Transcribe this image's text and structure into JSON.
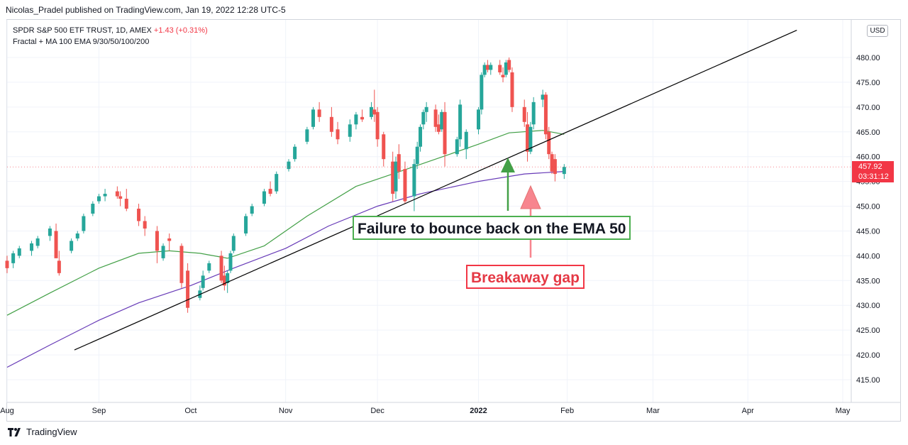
{
  "header": {
    "published_line": "Nicolas_Pradel published on TradingView.com, Jan 19, 2022 12:28 UTC-5"
  },
  "legend": {
    "symbol_line": "SPDR S&P 500 ETF TRUST, 1D, AMEX",
    "change": "+1.43 (+0.31%)",
    "indicator_line": "Fractal + MA 100 EMA 9/30/50/100/200"
  },
  "currency_badge": "USD",
  "price_tag": {
    "price": "457.92",
    "countdown": "03:31:12"
  },
  "annotations": {
    "ema_failure": "Failure to bounce back on the EMA 50",
    "breakaway_gap": "Breakaway gap"
  },
  "footer": {
    "brand": "TradingView"
  },
  "colors": {
    "up": "#26a69a",
    "down": "#ef5350",
    "ema50": "#43a047",
    "ema100": "#673ab7",
    "trendline": "#000000",
    "green_arrow": "#43a047",
    "red_arrow": "#f7858e"
  },
  "chart_data": {
    "type": "candlestick",
    "y_axis": {
      "ticks": [
        "480.00",
        "475.00",
        "470.00",
        "465.00",
        "460.00",
        "455.00",
        "450.00",
        "445.00",
        "440.00",
        "435.00",
        "430.00",
        "425.00",
        "420.00",
        "415.00"
      ],
      "range": [
        411,
        486
      ]
    },
    "x_axis": {
      "ticks": [
        {
          "label": "Aug",
          "date": "2021-08-02",
          "bold": false
        },
        {
          "label": "Sep",
          "date": "2021-09-01",
          "bold": false
        },
        {
          "label": "Oct",
          "date": "2021-10-01",
          "bold": false
        },
        {
          "label": "Nov",
          "date": "2021-11-01",
          "bold": false
        },
        {
          "label": "Dec",
          "date": "2021-12-01",
          "bold": false
        },
        {
          "label": "2022",
          "date": "2022-01-03",
          "bold": true
        },
        {
          "label": "Feb",
          "date": "2022-02-01",
          "bold": false
        },
        {
          "label": "Mar",
          "date": "2022-03-01",
          "bold": false
        },
        {
          "label": "Apr",
          "date": "2022-04-01",
          "bold": false
        },
        {
          "label": "May",
          "date": "2022-05-02",
          "bold": false
        }
      ]
    },
    "candles": [
      [
        "2021-08-02",
        439.0,
        440.0,
        436.5,
        437.5
      ],
      [
        "2021-08-04",
        438.5,
        441.0,
        437.5,
        440.5
      ],
      [
        "2021-08-06",
        440.0,
        442.0,
        439.5,
        441.5
      ],
      [
        "2021-08-10",
        441.0,
        443.0,
        440.0,
        442.5
      ],
      [
        "2021-08-12",
        442.0,
        444.0,
        441.5,
        443.5
      ],
      [
        "2021-08-16",
        444.0,
        446.0,
        443.0,
        445.5
      ],
      [
        "2021-08-18",
        445.0,
        446.5,
        440.0,
        439.5
      ],
      [
        "2021-08-19",
        439.0,
        441.0,
        436.0,
        436.5
      ],
      [
        "2021-08-23",
        441.0,
        443.5,
        440.5,
        443.0
      ],
      [
        "2021-08-25",
        443.5,
        445.0,
        443.0,
        444.5
      ],
      [
        "2021-08-27",
        445.0,
        448.5,
        444.5,
        448.0
      ],
      [
        "2021-08-30",
        448.5,
        451.0,
        448.0,
        450.5
      ],
      [
        "2021-09-01",
        451.0,
        452.5,
        450.5,
        452.0
      ],
      [
        "2021-09-03",
        452.0,
        453.5,
        451.0,
        452.5
      ],
      [
        "2021-09-07",
        453.0,
        454.0,
        451.5,
        452.0
      ],
      [
        "2021-09-08",
        452.0,
        453.0,
        450.0,
        451.5
      ],
      [
        "2021-09-10",
        451.5,
        453.5,
        449.0,
        449.5
      ],
      [
        "2021-09-14",
        449.5,
        450.5,
        446.0,
        447.0
      ],
      [
        "2021-09-16",
        447.0,
        448.0,
        444.0,
        445.5
      ],
      [
        "2021-09-20",
        445.0,
        446.0,
        438.5,
        441.0
      ],
      [
        "2021-09-22",
        439.5,
        442.5,
        439.0,
        442.0
      ],
      [
        "2021-09-24",
        443.5,
        444.5,
        441.0,
        443.0
      ],
      [
        "2021-09-28",
        442.0,
        442.5,
        433.5,
        434.5
      ],
      [
        "2021-09-30",
        437.0,
        438.5,
        428.5,
        429.5
      ],
      [
        "2021-10-04",
        431.5,
        434.0,
        431.0,
        433.0
      ],
      [
        "2021-10-05",
        433.5,
        437.0,
        433.0,
        436.0
      ],
      [
        "2021-10-07",
        437.0,
        439.0,
        436.5,
        438.5
      ],
      [
        "2021-10-11",
        440.0,
        441.0,
        434.5,
        435.0
      ],
      [
        "2021-10-12",
        436.0,
        438.0,
        433.0,
        434.0
      ],
      [
        "2021-10-13",
        434.5,
        437.0,
        432.5,
        436.5
      ],
      [
        "2021-10-14",
        437.0,
        441.0,
        436.5,
        440.5
      ],
      [
        "2021-10-15",
        441.0,
        444.5,
        440.5,
        444.0
      ],
      [
        "2021-10-19",
        444.5,
        448.5,
        444.0,
        448.0
      ],
      [
        "2021-10-21",
        448.5,
        450.5,
        448.0,
        450.0
      ],
      [
        "2021-10-25",
        450.5,
        453.5,
        450.0,
        453.0
      ],
      [
        "2021-10-27",
        453.5,
        455.0,
        452.0,
        452.5
      ],
      [
        "2021-10-29",
        453.0,
        457.0,
        452.5,
        456.5
      ],
      [
        "2021-11-02",
        457.5,
        459.5,
        457.0,
        459.0
      ],
      [
        "2021-11-04",
        459.5,
        462.5,
        459.0,
        462.0
      ],
      [
        "2021-11-08",
        463.0,
        466.0,
        462.5,
        465.5
      ],
      [
        "2021-11-10",
        466.0,
        470.0,
        465.5,
        469.5
      ],
      [
        "2021-11-12",
        469.5,
        471.0,
        467.0,
        468.0
      ],
      [
        "2021-11-16",
        468.0,
        470.0,
        464.0,
        465.0
      ],
      [
        "2021-11-18",
        465.5,
        467.0,
        462.5,
        463.5
      ],
      [
        "2021-11-22",
        464.0,
        467.5,
        463.0,
        466.5
      ],
      [
        "2021-11-24",
        466.5,
        469.0,
        465.5,
        468.5
      ],
      [
        "2021-11-26",
        468.0,
        469.5,
        467.0,
        467.5
      ],
      [
        "2021-11-29",
        468.0,
        471.0,
        467.5,
        470.0
      ],
      [
        "2021-11-30",
        469.5,
        473.5,
        467.0,
        468.5
      ],
      [
        "2021-12-01",
        469.0,
        470.0,
        462.0,
        463.5
      ],
      [
        "2021-12-03",
        464.5,
        465.0,
        458.0,
        459.5
      ],
      [
        "2021-12-06",
        459.0,
        461.0,
        451.0,
        452.5
      ],
      [
        "2021-12-07",
        453.0,
        460.0,
        451.5,
        459.0
      ],
      [
        "2021-12-08",
        460.5,
        462.5,
        455.5,
        457.0
      ],
      [
        "2021-12-10",
        457.5,
        459.0,
        450.5,
        451.0
      ],
      [
        "2021-12-13",
        452.0,
        459.5,
        449.0,
        458.5
      ],
      [
        "2021-12-14",
        458.5,
        463.0,
        457.5,
        462.0
      ],
      [
        "2021-12-15",
        462.0,
        466.5,
        461.0,
        466.0
      ],
      [
        "2021-12-16",
        466.5,
        469.5,
        465.5,
        469.0
      ],
      [
        "2021-12-17",
        469.0,
        471.0,
        467.0,
        470.0
      ],
      [
        "2021-12-20",
        469.5,
        470.5,
        465.0,
        466.0
      ],
      [
        "2021-12-21",
        466.5,
        468.5,
        464.5,
        465.0
      ],
      [
        "2021-12-22",
        465.5,
        469.5,
        465.0,
        469.0
      ],
      [
        "2021-12-23",
        469.0,
        471.0,
        458.0,
        460.5
      ],
      [
        "2021-12-27",
        460.5,
        464.0,
        460.0,
        463.5
      ],
      [
        "2021-12-28",
        463.5,
        471.5,
        462.0,
        470.5
      ],
      [
        "2021-12-30",
        461.5,
        465.5,
        459.5,
        465.0
      ],
      [
        "2022-01-03",
        465.5,
        470.0,
        464.5,
        469.5
      ],
      [
        "2022-01-04",
        469.5,
        477.0,
        468.5,
        476.5
      ],
      [
        "2022-01-05",
        476.5,
        479.0,
        476.0,
        478.5
      ],
      [
        "2022-01-06",
        478.5,
        479.5,
        477.0,
        477.5
      ],
      [
        "2022-01-07",
        477.5,
        479.0,
        476.5,
        478.5
      ],
      [
        "2022-01-10",
        478.5,
        479.5,
        476.5,
        477.0
      ],
      [
        "2022-01-11",
        476.5,
        478.0,
        475.0,
        476.0
      ],
      [
        "2022-01-12",
        476.5,
        479.5,
        476.0,
        479.0
      ],
      [
        "2022-01-13",
        479.5,
        480.0,
        477.0,
        477.5
      ],
      [
        "2022-01-14",
        477.0,
        478.0,
        469.0,
        470.0
      ],
      [
        "2022-01-18",
        470.0,
        471.5,
        466.0,
        467.0
      ],
      [
        "2022-01-19",
        466.5,
        469.0,
        459.0,
        461.0
      ],
      [
        "2022-01-20",
        461.0,
        467.0,
        460.5,
        466.0
      ],
      [
        "2022-01-21",
        466.5,
        472.0,
        465.5,
        471.0
      ],
      [
        "2022-01-24",
        471.5,
        473.5,
        470.0,
        472.5
      ],
      [
        "2022-01-25",
        472.5,
        473.0,
        463.5,
        464.5
      ],
      [
        "2022-01-26",
        465.0,
        466.0,
        459.5,
        460.5
      ],
      [
        "2022-01-27",
        460.5,
        461.0,
        456.5,
        457.0
      ],
      [
        "2022-01-28",
        459.5,
        460.5,
        455.0,
        456.5
      ],
      [
        "2022-01-31",
        456.5,
        458.5,
        455.5,
        457.92
      ]
    ],
    "ema50": [
      [
        "2021-08-02",
        428.0
      ],
      [
        "2021-08-16",
        432.5
      ],
      [
        "2021-09-01",
        437.5
      ],
      [
        "2021-09-14",
        440.5
      ],
      [
        "2021-09-24",
        441.0
      ],
      [
        "2021-10-04",
        440.5
      ],
      [
        "2021-10-13",
        439.5
      ],
      [
        "2021-10-25",
        442.0
      ],
      [
        "2021-11-08",
        448.0
      ],
      [
        "2021-11-24",
        454.0
      ],
      [
        "2021-12-06",
        456.5
      ],
      [
        "2021-12-20",
        459.5
      ],
      [
        "2022-01-03",
        462.5
      ],
      [
        "2022-01-13",
        464.8
      ],
      [
        "2022-01-24",
        465.3
      ],
      [
        "2022-01-31",
        464.5
      ]
    ],
    "ema100": [
      [
        "2021-08-02",
        417.5
      ],
      [
        "2021-08-16",
        422.0
      ],
      [
        "2021-09-01",
        427.0
      ],
      [
        "2021-09-14",
        430.5
      ],
      [
        "2021-10-01",
        434.0
      ],
      [
        "2021-10-15",
        437.5
      ],
      [
        "2021-11-01",
        441.5
      ],
      [
        "2021-11-15",
        446.0
      ],
      [
        "2021-12-01",
        450.0
      ],
      [
        "2021-12-15",
        452.5
      ],
      [
        "2022-01-03",
        455.0
      ],
      [
        "2022-01-18",
        456.5
      ],
      [
        "2022-01-31",
        457.0
      ]
    ],
    "trendline": [
      [
        "2021-08-24",
        421.0
      ],
      [
        "2022-04-17",
        485.5
      ]
    ]
  }
}
